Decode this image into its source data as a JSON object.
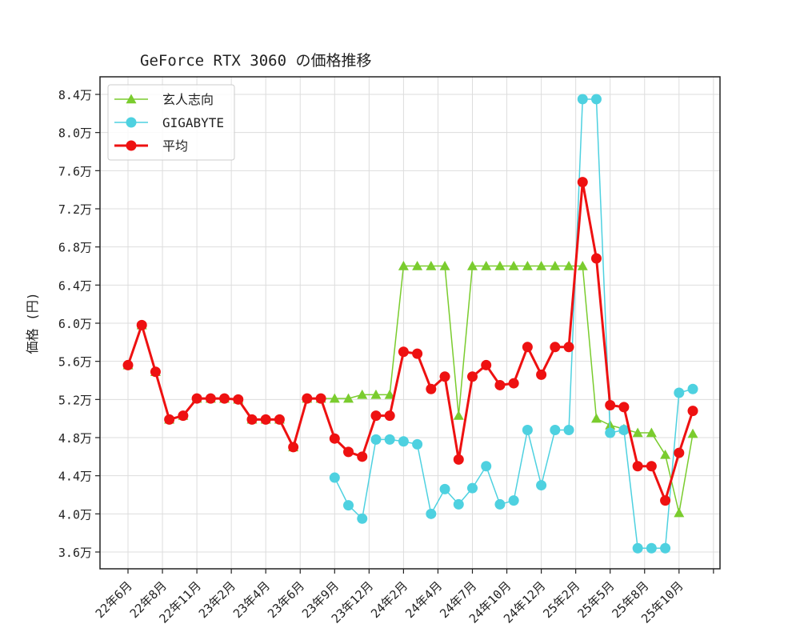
{
  "chart_data": {
    "type": "line",
    "title": "GeForce RTX 3060 の価格推移",
    "xlabel": "",
    "ylabel": "価格 (円)",
    "ylim": [
      34200,
      85200
    ],
    "yticks": [
      36000,
      40000,
      44000,
      48000,
      52000,
      56000,
      60000,
      64000,
      68000,
      72000,
      76000,
      80000,
      84000
    ],
    "ytick_labels": [
      "3.6万",
      "4.0万",
      "4.4万",
      "4.8万",
      "5.2万",
      "5.6万",
      "6.0万",
      "6.4万",
      "6.8万",
      "7.2万",
      "7.6万",
      "8.0万",
      "8.4万"
    ],
    "xtick_labels": [
      "22年6月",
      "22年8月",
      "22年11月",
      "23年2月",
      "23年4月",
      "23年6月",
      "23年9月",
      "23年12月",
      "24年2月",
      "24年4月",
      "24年7月",
      "24年10月",
      "24年12月",
      "25年2月",
      "25年5月",
      "25年8月",
      "25年10月",
      ""
    ],
    "xtick_index": [
      0,
      2.5,
      5,
      7.5,
      10,
      12.5,
      15,
      17.5,
      20,
      22.5,
      25,
      27.5,
      30,
      32.5,
      35,
      37.5,
      40,
      42.5
    ],
    "grid": true,
    "legend_position": "upper left",
    "n_points": 42,
    "series": [
      {
        "name": "玄人志向",
        "color": "#7acc2e",
        "marker": "triangle",
        "linewidth": 1.5,
        "values": [
          55600,
          59800,
          54900,
          49900,
          50300,
          52100,
          52100,
          52100,
          52000,
          49900,
          49900,
          49900,
          47000,
          52100,
          52100,
          52100,
          52100,
          52500,
          52500,
          52500,
          66000,
          66000,
          66000,
          66000,
          50300,
          66000,
          66000,
          66000,
          66000,
          66000,
          66000,
          66000,
          66000,
          66000,
          50000,
          49300,
          48900,
          48500,
          48500,
          46200,
          40100,
          48400
        ]
      },
      {
        "name": "GIGABYTE",
        "color": "#4ed1e0",
        "marker": "circle",
        "linewidth": 1.5,
        "values": [
          null,
          null,
          null,
          null,
          null,
          null,
          null,
          null,
          null,
          null,
          null,
          null,
          null,
          null,
          null,
          43800,
          40900,
          39500,
          47800,
          47800,
          47600,
          47300,
          40000,
          42600,
          41000,
          42700,
          45000,
          41000,
          41400,
          48800,
          43000,
          48800,
          48800,
          83500,
          83500,
          48500,
          48800,
          36400,
          36400,
          36400,
          52700,
          53100
        ]
      },
      {
        "name": "平均",
        "color": "#ee1111",
        "marker": "circle",
        "linewidth": 3,
        "values": [
          55600,
          59800,
          54900,
          49900,
          50300,
          52100,
          52100,
          52100,
          52000,
          49900,
          49900,
          49900,
          47000,
          52100,
          52100,
          47900,
          46500,
          46000,
          50300,
          50300,
          57000,
          56800,
          53100,
          54400,
          45700,
          54400,
          55600,
          53500,
          53700,
          57500,
          54600,
          57500,
          57500,
          74800,
          66800,
          51400,
          51200,
          45000,
          45000,
          41400,
          46400,
          50800
        ]
      }
    ]
  }
}
